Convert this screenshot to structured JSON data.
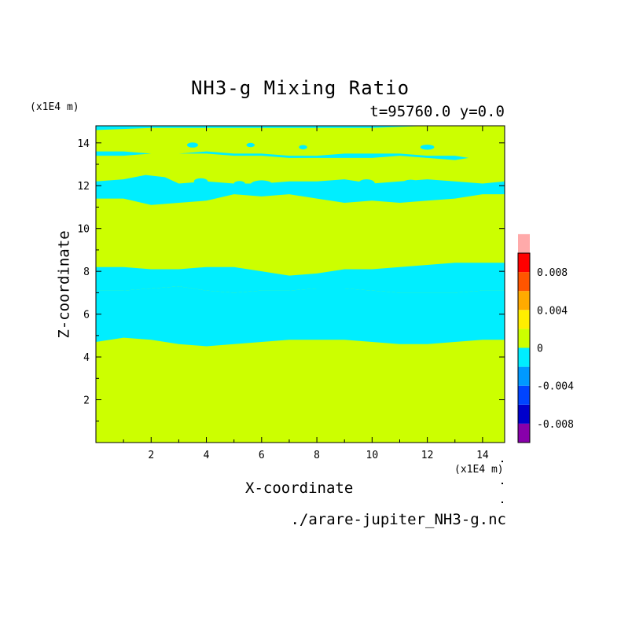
{
  "chart_data": {
    "type": "heatmap",
    "title": "NH3-g Mixing Ratio",
    "subtitle": "t=95760.0 y=0.0",
    "xlabel": "X-coordinate",
    "ylabel": "Z-coordinate",
    "x_unit": "(x1E4 m)",
    "y_unit": "(x1E4 m)",
    "xlim": [
      0,
      14.8
    ],
    "ylim": [
      0,
      14.8
    ],
    "x_ticks": [
      2,
      4,
      6,
      8,
      10,
      12,
      14
    ],
    "y_ticks": [
      2,
      4,
      6,
      8,
      10,
      12,
      14
    ],
    "colorbar": {
      "levels": [
        -0.01,
        -0.008,
        -0.006,
        -0.004,
        -0.002,
        0,
        0.002,
        0.004,
        0.006,
        0.008,
        0.01
      ],
      "colors": [
        "#8800aa",
        "#0000cc",
        "#0044ff",
        "#0099ff",
        "#00eeff",
        "#ccff00",
        "#ffee00",
        "#ffaa00",
        "#ff5500",
        "#ff0000",
        "#ffaaaa"
      ],
      "tick_labels": [
        "-0.008",
        "-0.004",
        "0",
        "0.004",
        "0.008"
      ],
      "tick_values": [
        -0.008,
        -0.004,
        0,
        0.004,
        0.008
      ]
    },
    "background_color": "#ccff00",
    "contour_color": "#00eeff",
    "regions": [
      {
        "name": "upper-negative-band",
        "value_sign": "negative",
        "lower": [
          [
            0,
            11.4
          ],
          [
            1,
            11.4
          ],
          [
            2,
            11.1
          ],
          [
            3,
            11.2
          ],
          [
            4,
            11.3
          ],
          [
            5,
            11.6
          ],
          [
            6,
            11.5
          ],
          [
            7,
            11.6
          ],
          [
            8,
            11.4
          ],
          [
            9,
            11.2
          ],
          [
            10,
            11.3
          ],
          [
            11,
            11.2
          ],
          [
            12,
            11.3
          ],
          [
            13,
            11.4
          ],
          [
            14,
            11.6
          ],
          [
            14.8,
            11.6
          ]
        ],
        "upper": [
          [
            0,
            12.2
          ],
          [
            1,
            12.3
          ],
          [
            1.8,
            12.5
          ],
          [
            2.5,
            12.4
          ],
          [
            3,
            12.1
          ],
          [
            4,
            12.2
          ],
          [
            5,
            12.1
          ],
          [
            6,
            12.1
          ],
          [
            7,
            12.2
          ],
          [
            8,
            12.2
          ],
          [
            9,
            12.3
          ],
          [
            10,
            12.1
          ],
          [
            11,
            12.2
          ],
          [
            12,
            12.3
          ],
          [
            13,
            12.2
          ],
          [
            14,
            12.1
          ],
          [
            14.8,
            12.2
          ]
        ]
      },
      {
        "name": "middle-negative-band",
        "value_sign": "negative",
        "lower": [
          [
            0,
            7.1
          ],
          [
            1,
            7.1
          ],
          [
            2,
            7.2
          ],
          [
            3,
            7.3
          ],
          [
            4,
            7.1
          ],
          [
            5,
            7.0
          ],
          [
            6,
            7.1
          ],
          [
            7,
            7.1
          ],
          [
            8,
            7.2
          ],
          [
            9,
            7.2
          ],
          [
            10,
            7.1
          ],
          [
            11,
            7.0
          ],
          [
            12,
            7.0
          ],
          [
            13,
            7.0
          ],
          [
            14,
            7.1
          ],
          [
            14.8,
            7.1
          ]
        ],
        "upper": [
          [
            0,
            8.2
          ],
          [
            1,
            8.2
          ],
          [
            2,
            8.1
          ],
          [
            3,
            8.1
          ],
          [
            4,
            8.2
          ],
          [
            5,
            8.2
          ],
          [
            6,
            8.0
          ],
          [
            7,
            7.8
          ],
          [
            8,
            7.9
          ],
          [
            9,
            8.1
          ],
          [
            10,
            8.1
          ],
          [
            11,
            8.2
          ],
          [
            12,
            8.3
          ],
          [
            13,
            8.4
          ],
          [
            14,
            8.4
          ],
          [
            14.8,
            8.4
          ]
        ]
      },
      {
        "name": "lower-negative-band",
        "value_sign": "negative",
        "lower": [
          [
            0,
            4.7
          ],
          [
            1,
            4.9
          ],
          [
            2,
            4.8
          ],
          [
            3,
            4.6
          ],
          [
            4,
            4.5
          ],
          [
            5,
            4.6
          ],
          [
            6,
            4.7
          ],
          [
            7,
            4.8
          ],
          [
            8,
            4.8
          ],
          [
            9,
            4.8
          ],
          [
            10,
            4.7
          ],
          [
            11,
            4.6
          ],
          [
            12,
            4.6
          ],
          [
            13,
            4.7
          ],
          [
            14,
            4.8
          ],
          [
            14.8,
            4.8
          ]
        ],
        "upper": [
          [
            0,
            7.1
          ],
          [
            1,
            7.1
          ],
          [
            2,
            7.2
          ],
          [
            3,
            7.3
          ],
          [
            4,
            7.1
          ],
          [
            5,
            7.0
          ],
          [
            6,
            7.1
          ],
          [
            7,
            7.1
          ],
          [
            8,
            7.2
          ],
          [
            9,
            7.2
          ],
          [
            10,
            7.1
          ],
          [
            11,
            7.0
          ],
          [
            12,
            7.0
          ],
          [
            13,
            7.0
          ],
          [
            14,
            7.1
          ],
          [
            14.8,
            7.1
          ]
        ]
      },
      {
        "name": "top-negative-strip",
        "value_sign": "negative",
        "lower": [
          [
            0,
            14.6
          ],
          [
            2,
            14.7
          ],
          [
            4,
            14.7
          ],
          [
            6,
            14.7
          ],
          [
            8,
            14.7
          ],
          [
            10,
            14.7
          ],
          [
            12,
            14.8
          ],
          [
            14.8,
            14.8
          ]
        ],
        "upper": [
          [
            0,
            14.8
          ],
          [
            14.8,
            14.8
          ]
        ]
      },
      {
        "name": "thin-negative-streak",
        "value_sign": "negative",
        "lower": [
          [
            0,
            13.4
          ],
          [
            1,
            13.4
          ],
          [
            2,
            13.5
          ],
          [
            3,
            13.5
          ],
          [
            4,
            13.5
          ],
          [
            5,
            13.4
          ],
          [
            6,
            13.4
          ],
          [
            7,
            13.3
          ],
          [
            8,
            13.3
          ],
          [
            9,
            13.3
          ],
          [
            10,
            13.3
          ],
          [
            11,
            13.4
          ],
          [
            12,
            13.3
          ],
          [
            13,
            13.2
          ],
          [
            13.5,
            13.3
          ]
        ],
        "upper": [
          [
            0,
            13.6
          ],
          [
            1,
            13.6
          ],
          [
            2,
            13.5
          ],
          [
            3,
            13.5
          ],
          [
            4,
            13.6
          ],
          [
            5,
            13.5
          ],
          [
            6,
            13.5
          ],
          [
            7,
            13.4
          ],
          [
            8,
            13.4
          ],
          [
            9,
            13.5
          ],
          [
            10,
            13.5
          ],
          [
            11,
            13.5
          ],
          [
            12,
            13.4
          ],
          [
            13,
            13.4
          ],
          [
            13.5,
            13.3
          ]
        ]
      }
    ],
    "blobs": [
      {
        "x": 3.8,
        "z": 12.2,
        "rx": 0.25,
        "rz": 0.15
      },
      {
        "x": 5.2,
        "z": 12.1,
        "rx": 0.2,
        "rz": 0.12
      },
      {
        "x": 6.0,
        "z": 12.05,
        "rx": 0.4,
        "rz": 0.2
      },
      {
        "x": 7.0,
        "z": 12.0,
        "rx": 0.35,
        "rz": 0.18
      },
      {
        "x": 8.4,
        "z": 12.0,
        "rx": 0.3,
        "rz": 0.15
      },
      {
        "x": 9.8,
        "z": 12.1,
        "rx": 0.3,
        "rz": 0.2
      },
      {
        "x": 11.4,
        "z": 12.1,
        "rx": 0.3,
        "rz": 0.18
      },
      {
        "x": 3.5,
        "z": 13.9,
        "rx": 0.2,
        "rz": 0.12
      },
      {
        "x": 5.6,
        "z": 13.9,
        "rx": 0.15,
        "rz": 0.1
      },
      {
        "x": 7.5,
        "z": 13.8,
        "rx": 0.15,
        "rz": 0.1
      },
      {
        "x": 12.0,
        "z": 13.8,
        "rx": 0.25,
        "rz": 0.12
      }
    ]
  },
  "filename": "./arare-jupiter_NH3-g.nc"
}
